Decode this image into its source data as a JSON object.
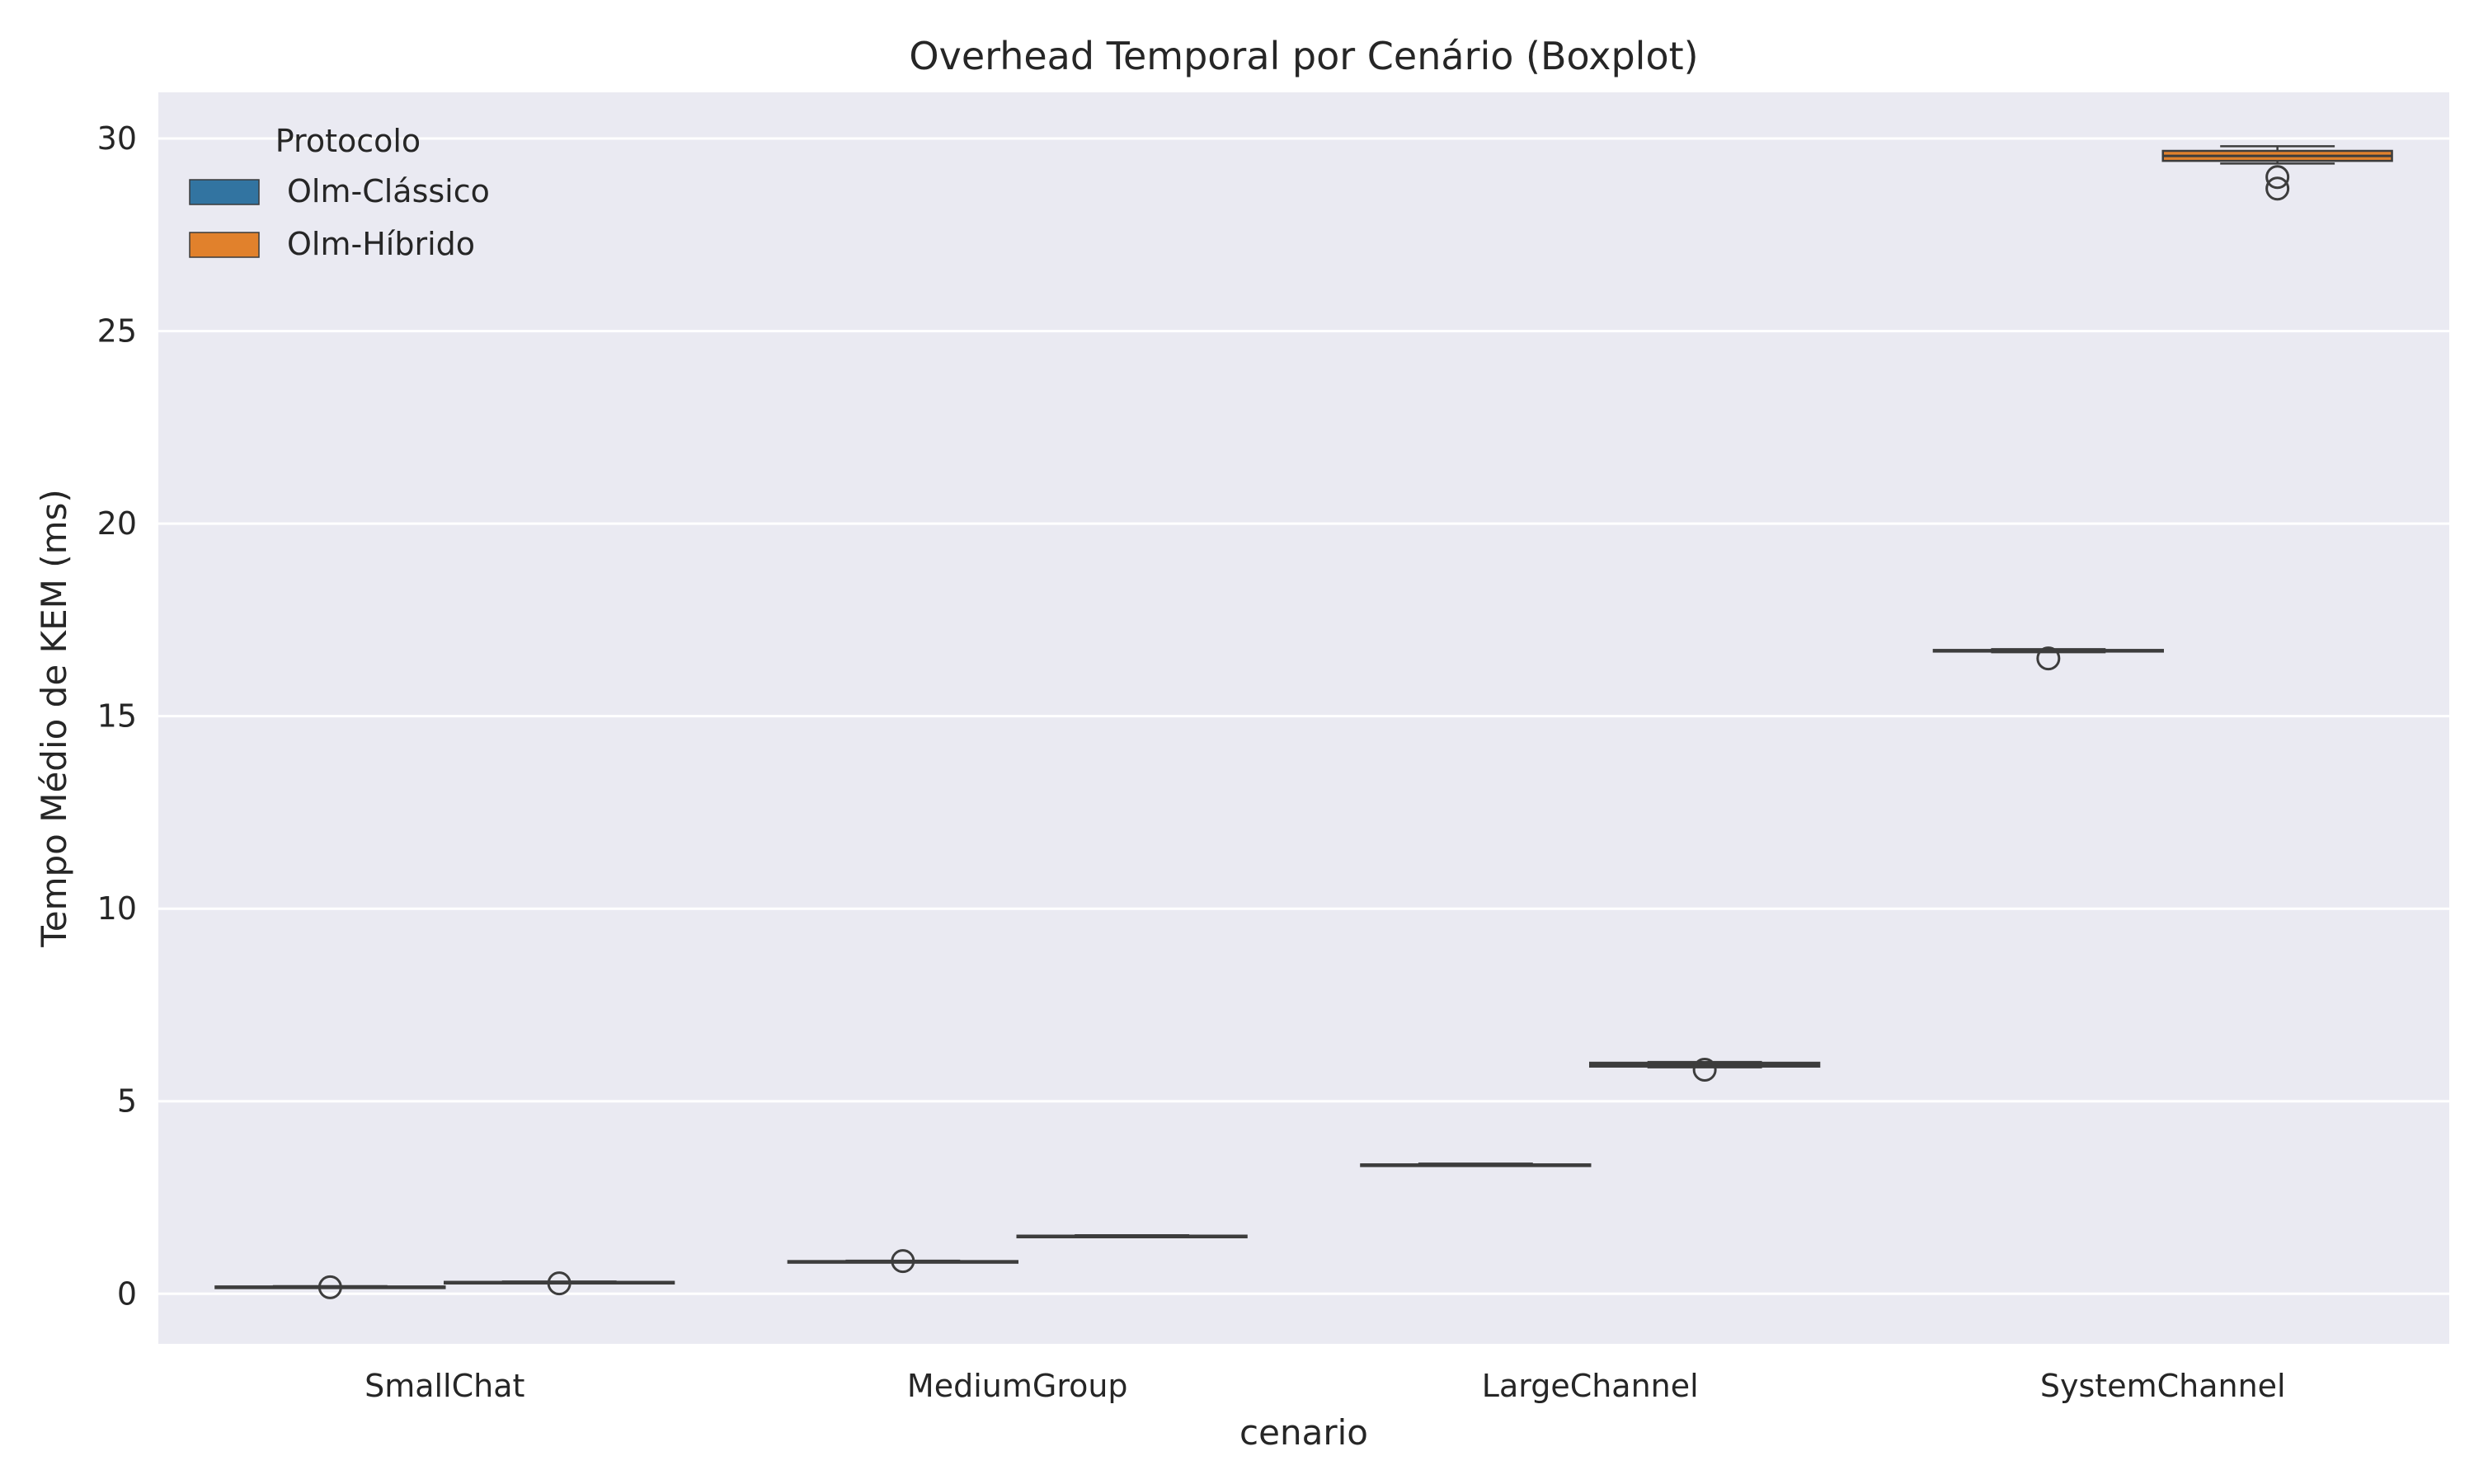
{
  "chart_data": {
    "type": "boxplot",
    "title": "Overhead Temporal por Cenário (Boxplot)",
    "xlabel": "cenario",
    "ylabel": "Tempo Médio de KEM (ms)",
    "ylim": [
      -1.3,
      31.2
    ],
    "yticks": [
      0,
      5,
      10,
      15,
      20,
      25,
      30
    ],
    "grid": true,
    "categories": [
      "SmallChat",
      "MediumGroup",
      "LargeChannel",
      "SystemChannel"
    ],
    "legend": {
      "title": "Protocolo",
      "position": "top-left"
    },
    "series": [
      {
        "name": "Olm-Clássico",
        "color": "#3274a1",
        "boxes": [
          {
            "whislo": 0.16,
            "q1": 0.17,
            "med": 0.18,
            "q3": 0.19,
            "whishi": 0.2,
            "fliers": [
              0.17
            ]
          },
          {
            "whislo": 0.82,
            "q1": 0.83,
            "med": 0.84,
            "q3": 0.85,
            "whishi": 0.86,
            "fliers": [
              0.85
            ]
          },
          {
            "whislo": 3.32,
            "q1": 3.33,
            "med": 3.35,
            "q3": 3.36,
            "whishi": 3.38,
            "fliers": []
          },
          {
            "whislo": 16.66,
            "q1": 16.68,
            "med": 16.7,
            "q3": 16.72,
            "whishi": 16.74,
            "fliers": [
              16.5
            ]
          }
        ]
      },
      {
        "name": "Olm-Híbrido",
        "color": "#e1812c",
        "boxes": [
          {
            "whislo": 0.28,
            "q1": 0.29,
            "med": 0.3,
            "q3": 0.31,
            "whishi": 0.32,
            "fliers": [
              0.27
            ]
          },
          {
            "whislo": 1.47,
            "q1": 1.48,
            "med": 1.49,
            "q3": 1.51,
            "whishi": 1.52,
            "fliers": []
          },
          {
            "whislo": 5.88,
            "q1": 5.9,
            "med": 5.95,
            "q3": 6.0,
            "whishi": 6.02,
            "fliers": [
              5.82
            ]
          },
          {
            "whislo": 29.35,
            "q1": 29.42,
            "med": 29.55,
            "q3": 29.68,
            "whishi": 29.8,
            "fliers": [
              28.7,
              29.0
            ]
          }
        ]
      }
    ]
  }
}
